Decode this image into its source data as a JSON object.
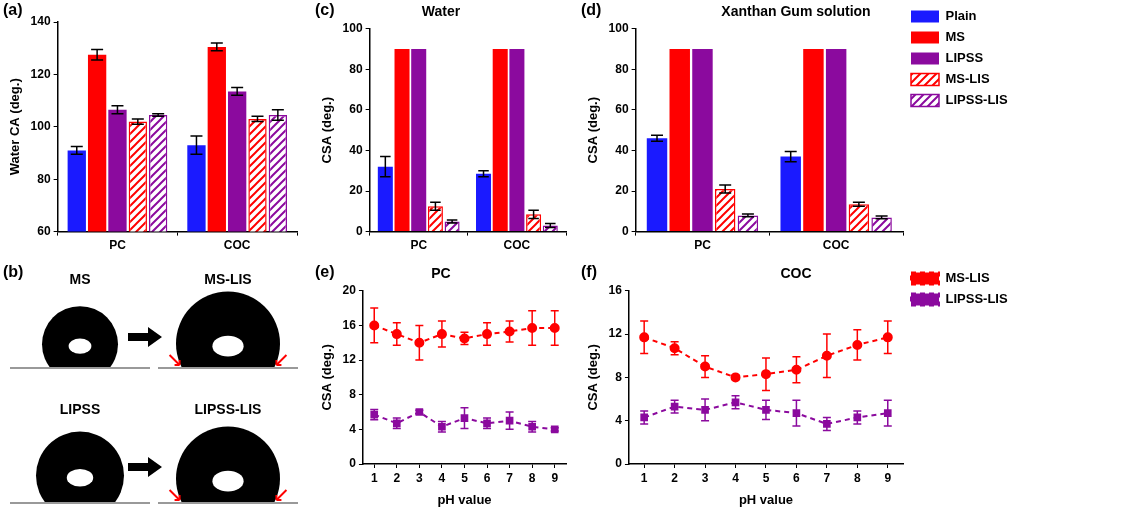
{
  "chart_data": [
    {
      "panel": "(a)",
      "type": "bar",
      "categories": [
        "PC",
        "COC"
      ],
      "ylabel": "Water CA (deg.)",
      "ylim": [
        60,
        140
      ],
      "yticks": [
        60,
        80,
        100,
        120,
        140
      ],
      "grid": false,
      "series": [
        {
          "name": "Plain",
          "color": "#1a1aff",
          "line_style": "solid",
          "values": [
            91,
            93
          ],
          "errors": [
            1.5,
            3.5
          ]
        },
        {
          "name": "MS",
          "color": "#ff0000",
          "line_style": "solid",
          "values": [
            127.5,
            130.5
          ],
          "errors": [
            2,
            1.5
          ]
        },
        {
          "name": "LIPSS",
          "color": "#8b0a9e",
          "line_style": "solid",
          "values": [
            106.5,
            113.5
          ],
          "errors": [
            1.5,
            1.5
          ]
        },
        {
          "name": "MS-LIS",
          "color": "#ff0000",
          "line_style": "hatched",
          "values": [
            102,
            103
          ],
          "errors": [
            1,
            1
          ]
        },
        {
          "name": "LIPSS-LIS",
          "color": "#8b0a9e",
          "line_style": "hatched",
          "values": [
            104.5,
            104.5
          ],
          "errors": [
            0.5,
            2
          ]
        }
      ]
    },
    {
      "panel": "(c)",
      "type": "bar",
      "title": "Water",
      "categories": [
        "PC",
        "COC"
      ],
      "ylabel": "CSA (deg.)",
      "ylim": [
        0,
        100
      ],
      "yticks": [
        0,
        20,
        40,
        60,
        80,
        100
      ],
      "grid": false,
      "series": [
        {
          "name": "Plain",
          "color": "#1a1aff",
          "line_style": "solid",
          "values": [
            32,
            28.5
          ],
          "errors": [
            5,
            1.5
          ]
        },
        {
          "name": "MS",
          "color": "#ff0000",
          "line_style": "solid",
          "values": [
            90,
            90
          ],
          "errors": [
            null,
            null
          ]
        },
        {
          "name": "LIPSS",
          "color": "#8b0a9e",
          "line_style": "solid",
          "values": [
            90,
            90
          ],
          "errors": [
            null,
            null
          ]
        },
        {
          "name": "MS-LIS",
          "color": "#ff0000",
          "line_style": "hatched",
          "values": [
            12.5,
            8.5
          ],
          "errors": [
            2,
            2
          ]
        },
        {
          "name": "LIPSS-LIS",
          "color": "#8b0a9e",
          "line_style": "hatched",
          "values": [
            5,
            3
          ],
          "errors": [
            0.7,
            1
          ]
        }
      ]
    },
    {
      "panel": "(d)",
      "type": "bar",
      "title": "Xanthan Gum solution",
      "categories": [
        "PC",
        "COC"
      ],
      "ylabel": "CSA (deg.)",
      "ylim": [
        0,
        100
      ],
      "yticks": [
        0,
        20,
        40,
        60,
        80,
        100
      ],
      "grid": false,
      "legend": "right",
      "series": [
        {
          "name": "Plain",
          "color": "#1a1aff",
          "line_style": "solid",
          "values": [
            46,
            37
          ],
          "errors": [
            1.5,
            2.5
          ]
        },
        {
          "name": "MS",
          "color": "#ff0000",
          "line_style": "solid",
          "values": [
            90,
            90
          ],
          "errors": [
            null,
            null
          ]
        },
        {
          "name": "LIPSS",
          "color": "#8b0a9e",
          "line_style": "solid",
          "values": [
            90,
            90
          ],
          "errors": [
            null,
            null
          ]
        },
        {
          "name": "MS-LIS",
          "color": "#ff0000",
          "line_style": "hatched",
          "values": [
            21,
            13.5
          ],
          "errors": [
            2,
            1
          ]
        },
        {
          "name": "LIPSS-LIS",
          "color": "#8b0a9e",
          "line_style": "hatched",
          "values": [
            8,
            7
          ],
          "errors": [
            0.7,
            0.7
          ]
        }
      ]
    },
    {
      "panel": "(e)",
      "type": "line",
      "title": "PC",
      "categories": [
        "1",
        "2",
        "3",
        "4",
        "5",
        "6",
        "7",
        "8",
        "9"
      ],
      "xlabel": "pH value",
      "ylabel": "CSA (deg.)",
      "ylim": [
        0,
        20
      ],
      "yticks": [
        0,
        4,
        8,
        12,
        16,
        20
      ],
      "grid": false,
      "series": [
        {
          "name": "MS-LIS",
          "color": "#ff0000",
          "marker": "circle",
          "line_style": "dashed",
          "values": [
            16,
            15,
            14,
            15,
            14.5,
            15,
            15.3,
            15.7,
            15.7
          ],
          "errors": [
            2,
            1.3,
            2,
            1.5,
            0.7,
            1.3,
            1.2,
            2,
            2
          ]
        },
        {
          "name": "LIPSS-LIS",
          "color": "#8b0a9e",
          "marker": "square",
          "line_style": "dashed",
          "values": [
            5.7,
            4.7,
            6,
            4.3,
            5.3,
            4.7,
            5,
            4.3,
            4
          ],
          "errors": [
            0.6,
            0.6,
            0.2,
            0.6,
            1.2,
            0.6,
            1,
            0.6,
            0.2
          ]
        }
      ]
    },
    {
      "panel": "(f)",
      "type": "line",
      "title": "COC",
      "categories": [
        "1",
        "2",
        "3",
        "4",
        "5",
        "6",
        "7",
        "8",
        "9"
      ],
      "xlabel": "pH value",
      "ylabel": "CSA (deg.)",
      "ylim": [
        0,
        16
      ],
      "yticks": [
        0,
        4,
        8,
        12,
        16
      ],
      "grid": false,
      "legend": "right",
      "series": [
        {
          "name": "MS-LIS",
          "color": "#ff0000",
          "marker": "circle",
          "line_style": "dashed",
          "values": [
            11.7,
            10.7,
            9,
            8,
            8.3,
            8.7,
            10,
            11,
            11.7
          ],
          "errors": [
            1.5,
            0.6,
            1,
            0.2,
            1.5,
            1.2,
            2,
            1.4,
            1.5
          ]
        },
        {
          "name": "LIPSS-LIS",
          "color": "#8b0a9e",
          "marker": "square",
          "line_style": "dashed",
          "values": [
            4.3,
            5.3,
            5,
            5.7,
            5,
            4.7,
            3.7,
            4.3,
            4.7
          ],
          "errors": [
            0.6,
            0.6,
            1,
            0.6,
            0.9,
            1.2,
            0.6,
            0.6,
            1.2
          ]
        }
      ]
    }
  ],
  "image_panel": {
    "panel": "(b)",
    "labels": [
      "MS",
      "MS-LIS",
      "LIPSS",
      "LIPSS-LIS"
    ]
  }
}
